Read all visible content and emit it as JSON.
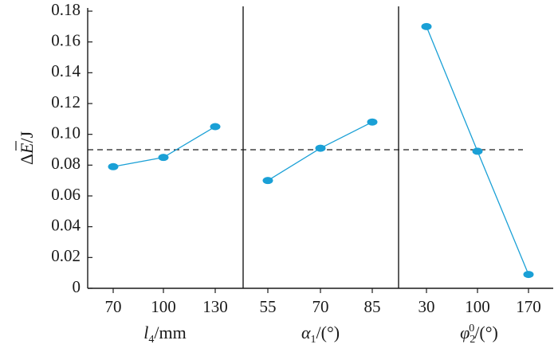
{
  "chart_data": {
    "type": "line",
    "ylabel": "ΔE̅/J",
    "ylim": [
      0,
      0.18
    ],
    "yticks": [
      "0",
      "0.02",
      "0.04",
      "0.06",
      "0.08",
      "0.10",
      "0.12",
      "0.14",
      "0.16",
      "0.18"
    ],
    "reference_line": 0.09,
    "series_color": "#1aa0d6",
    "panels": [
      {
        "xlabel": "l4/mm",
        "categories": [
          "70",
          "100",
          "130"
        ],
        "values": [
          0.079,
          0.085,
          0.105
        ]
      },
      {
        "xlabel": "α1/(°)",
        "categories": [
          "55",
          "70",
          "85"
        ],
        "values": [
          0.07,
          0.091,
          0.108
        ]
      },
      {
        "xlabel": "φ20/(°)",
        "categories": [
          "30",
          "100",
          "170"
        ],
        "values": [
          0.17,
          0.089,
          0.009
        ]
      }
    ]
  }
}
